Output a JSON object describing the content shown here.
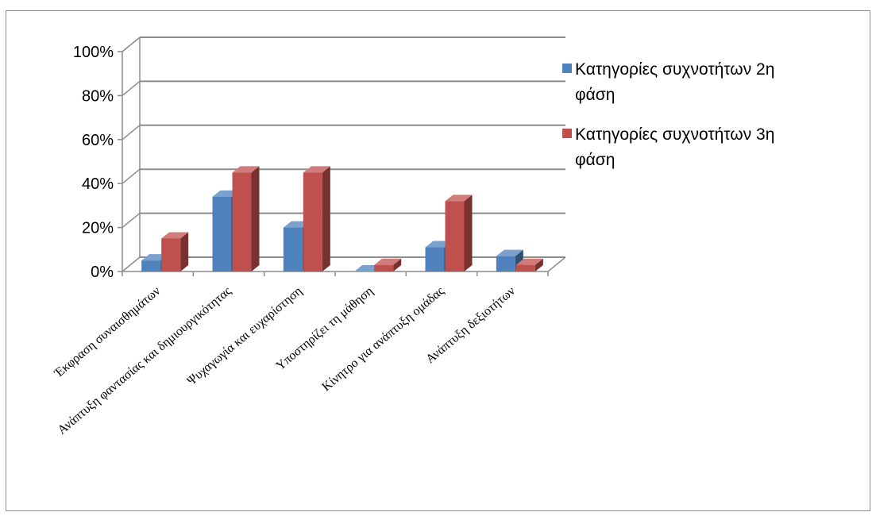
{
  "chart_data": {
    "type": "bar",
    "title": "",
    "xlabel": "",
    "ylabel": "",
    "ylim": [
      0,
      100
    ],
    "y_ticks": [
      "0%",
      "20%",
      "40%",
      "60%",
      "80%",
      "100%"
    ],
    "categories": [
      "Έκφραση συναισθημάτων",
      "Ανάπτυξη φαντασίας και δημιουργικότητας",
      "Ψυχαγωγία και ευχαρίστηση",
      "Υποστηρίζει τη μάθηση",
      "Κίνητρο για ανάπτυξη ομάδας",
      "Ανάπτυξη δεξιοτήτων"
    ],
    "series": [
      {
        "name": "Κατηγορίες συχνοτήτων 2η φάση",
        "legend_lines": [
          "Κατηγορίες συχνοτήτων 2η",
          "φάση"
        ],
        "color": "#4f81bd",
        "values": [
          5,
          34,
          20,
          0,
          11,
          7
        ]
      },
      {
        "name": "Κατηγορίες συχνοτήτων 3η φάση",
        "legend_lines": [
          "Κατηγορίες συχνοτήτων 3η",
          "φάση"
        ],
        "color": "#c0504d",
        "values": [
          15,
          45,
          45,
          3,
          32,
          3
        ]
      }
    ],
    "grid": true,
    "legend_position": "right"
  }
}
